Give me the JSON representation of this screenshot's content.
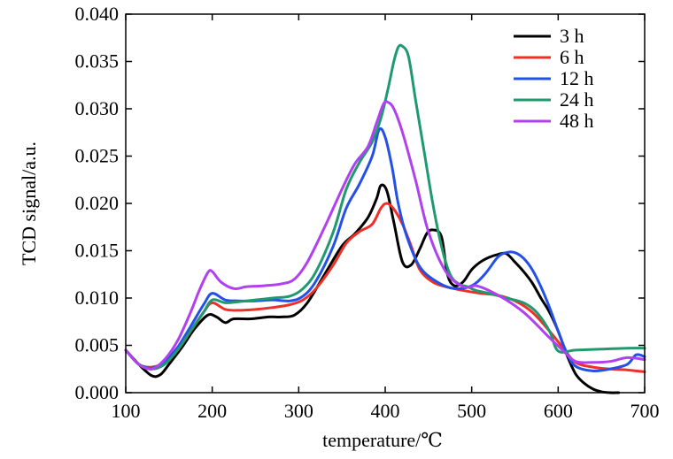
{
  "chart_data": {
    "type": "line",
    "xlabel": "temperature/℃",
    "ylabel": "TCD signal/a.u.",
    "xlim": [
      100,
      700
    ],
    "ylim": [
      0.0,
      0.04
    ],
    "x_ticks": [
      100,
      200,
      300,
      400,
      500,
      600,
      700
    ],
    "x_tick_labels": [
      "100",
      "200",
      "300",
      "400",
      "500",
      "600",
      "700"
    ],
    "y_ticks": [
      0.0,
      0.005,
      0.01,
      0.015,
      0.02,
      0.025,
      0.03,
      0.035,
      0.04
    ],
    "y_tick_labels": [
      "0.000",
      "0.005",
      "0.010",
      "0.015",
      "0.020",
      "0.025",
      "0.030",
      "0.035",
      "0.040"
    ],
    "grid": false,
    "legend_position": "top-right",
    "series": [
      {
        "name": "3 h",
        "color": "#000000",
        "x": [
          100,
          115,
          130,
          140,
          150,
          165,
          180,
          195,
          205,
          215,
          225,
          245,
          265,
          280,
          295,
          310,
          330,
          350,
          365,
          380,
          390,
          395,
          402,
          410,
          420,
          430,
          440,
          448,
          455,
          465,
          472,
          480,
          490,
          500,
          510,
          520,
          530,
          540,
          550,
          560,
          570,
          580,
          590,
          600,
          610,
          620,
          630,
          640,
          650,
          660,
          670
        ],
        "y": [
          0.0045,
          0.003,
          0.0018,
          0.0019,
          0.003,
          0.0048,
          0.0068,
          0.0082,
          0.008,
          0.0074,
          0.0078,
          0.0078,
          0.008,
          0.008,
          0.0082,
          0.0095,
          0.0125,
          0.0155,
          0.0168,
          0.0185,
          0.0205,
          0.0219,
          0.0213,
          0.018,
          0.0138,
          0.0135,
          0.0152,
          0.0168,
          0.0172,
          0.0165,
          0.0125,
          0.0113,
          0.0117,
          0.013,
          0.0138,
          0.0143,
          0.0146,
          0.0147,
          0.0138,
          0.0128,
          0.0116,
          0.01,
          0.0085,
          0.0065,
          0.004,
          0.002,
          0.001,
          0.0004,
          0.0001,
          0.0,
          0.0
        ]
      },
      {
        "name": "6 h",
        "color": "#ee3028",
        "x": [
          100,
          115,
          130,
          145,
          160,
          175,
          190,
          200,
          215,
          230,
          250,
          270,
          290,
          305,
          320,
          340,
          355,
          370,
          385,
          395,
          402,
          410,
          420,
          430,
          440,
          455,
          470,
          490,
          510,
          530,
          550,
          570,
          590,
          605,
          620,
          640,
          660,
          680,
          700
        ],
        "y": [
          0.0045,
          0.003,
          0.0027,
          0.0032,
          0.0045,
          0.0065,
          0.0085,
          0.0095,
          0.0088,
          0.0087,
          0.0088,
          0.009,
          0.0093,
          0.0098,
          0.011,
          0.0135,
          0.0158,
          0.017,
          0.0178,
          0.0195,
          0.02,
          0.0194,
          0.0178,
          0.0155,
          0.013,
          0.0117,
          0.0112,
          0.0108,
          0.0105,
          0.0103,
          0.0097,
          0.0085,
          0.0065,
          0.0048,
          0.0032,
          0.0027,
          0.0025,
          0.0024,
          0.0022
        ]
      },
      {
        "name": "12 h",
        "color": "#2350e8",
        "x": [
          100,
          115,
          130,
          145,
          160,
          175,
          190,
          200,
          215,
          230,
          250,
          270,
          290,
          305,
          320,
          340,
          355,
          370,
          385,
          393,
          400,
          408,
          415,
          425,
          440,
          460,
          480,
          500,
          515,
          530,
          540,
          550,
          560,
          570,
          580,
          590,
          600,
          610,
          620,
          640,
          660,
          680,
          690,
          700
        ],
        "y": [
          0.0045,
          0.003,
          0.0026,
          0.0033,
          0.0048,
          0.007,
          0.0093,
          0.0105,
          0.0098,
          0.0097,
          0.0097,
          0.0098,
          0.0097,
          0.0102,
          0.0118,
          0.0155,
          0.0195,
          0.022,
          0.025,
          0.0278,
          0.027,
          0.0238,
          0.02,
          0.0165,
          0.0133,
          0.0117,
          0.011,
          0.0113,
          0.0125,
          0.0143,
          0.0148,
          0.0148,
          0.0142,
          0.013,
          0.0112,
          0.009,
          0.0065,
          0.0042,
          0.0028,
          0.0023,
          0.0025,
          0.003,
          0.004,
          0.0038
        ]
      },
      {
        "name": "24 h",
        "color": "#1f9a6e",
        "x": [
          100,
          115,
          130,
          145,
          160,
          175,
          190,
          200,
          215,
          230,
          250,
          270,
          290,
          305,
          320,
          340,
          355,
          370,
          385,
          395,
          403,
          410,
          415,
          420,
          427,
          435,
          445,
          455,
          465,
          475,
          485,
          495,
          505,
          520,
          540,
          560,
          575,
          590,
          600,
          620,
          650,
          680,
          700
        ],
        "y": [
          0.0045,
          0.003,
          0.0025,
          0.003,
          0.0045,
          0.0065,
          0.0085,
          0.0098,
          0.0095,
          0.0096,
          0.0098,
          0.01,
          0.0102,
          0.011,
          0.0128,
          0.017,
          0.0215,
          0.0243,
          0.0265,
          0.029,
          0.032,
          0.035,
          0.0365,
          0.0366,
          0.0355,
          0.031,
          0.0255,
          0.02,
          0.0155,
          0.0125,
          0.0115,
          0.0112,
          0.0108,
          0.0105,
          0.01,
          0.0095,
          0.0085,
          0.0065,
          0.0044,
          0.0045,
          0.0046,
          0.0047,
          0.0047
        ]
      },
      {
        "name": "48 h",
        "color": "#b040f0",
        "x": [
          100,
          115,
          130,
          145,
          160,
          175,
          185,
          195,
          200,
          210,
          225,
          240,
          260,
          280,
          295,
          310,
          330,
          350,
          365,
          380,
          390,
          398,
          403,
          410,
          420,
          435,
          450,
          470,
          490,
          505,
          520,
          540,
          560,
          575,
          590,
          605,
          620,
          640,
          660,
          680,
          700
        ],
        "y": [
          0.0045,
          0.003,
          0.0025,
          0.0035,
          0.0055,
          0.0085,
          0.0108,
          0.0127,
          0.0128,
          0.0117,
          0.011,
          0.0112,
          0.0113,
          0.0115,
          0.012,
          0.0138,
          0.0175,
          0.0215,
          0.0242,
          0.026,
          0.0285,
          0.0305,
          0.0307,
          0.03,
          0.0275,
          0.0225,
          0.017,
          0.0128,
          0.0112,
          0.0113,
          0.0108,
          0.0098,
          0.0085,
          0.0072,
          0.0058,
          0.0045,
          0.0033,
          0.0032,
          0.0033,
          0.0037,
          0.0035
        ]
      }
    ]
  }
}
